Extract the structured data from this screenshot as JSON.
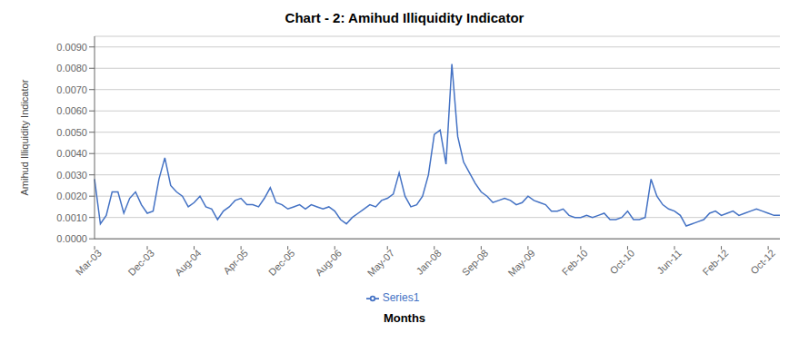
{
  "chart_data": {
    "type": "line",
    "title": "Chart - 2: Amihud Illiquidity Indicator",
    "y_label": "Amihud Illiquidity Indicator",
    "x_label": "Months",
    "categories": [
      "Mar-03",
      null,
      null,
      null,
      null,
      null,
      null,
      null,
      null,
      "Dec-03",
      null,
      null,
      null,
      null,
      null,
      null,
      null,
      "Aug-04",
      null,
      null,
      null,
      null,
      null,
      null,
      null,
      "Apr-05",
      null,
      null,
      null,
      null,
      null,
      null,
      null,
      "Dec-05",
      null,
      null,
      null,
      null,
      null,
      null,
      null,
      "Aug-06",
      null,
      null,
      null,
      null,
      null,
      null,
      null,
      null,
      "May-07",
      null,
      null,
      null,
      null,
      null,
      null,
      null,
      "Jan-08",
      null,
      null,
      null,
      null,
      null,
      null,
      null,
      "Sep-08",
      null,
      null,
      null,
      null,
      null,
      null,
      null,
      "May-09",
      null,
      null,
      null,
      null,
      null,
      null,
      null,
      null,
      "Feb-10",
      null,
      null,
      null,
      null,
      null,
      null,
      null,
      "Oct-10",
      null,
      null,
      null,
      null,
      null,
      null,
      null,
      "Jun-11",
      null,
      null,
      null,
      null,
      null,
      null,
      null,
      "Feb-12",
      null,
      null,
      null,
      null,
      null,
      null,
      null,
      "Oct-12",
      null,
      null
    ],
    "series": [
      {
        "name": "Series1",
        "color": "#4472C4",
        "values": [
          0.0028,
          0.0007,
          0.0011,
          0.0022,
          0.0022,
          0.0012,
          0.0019,
          0.0022,
          0.0016,
          0.0012,
          0.0013,
          0.0028,
          0.0038,
          0.0025,
          0.0022,
          0.002,
          0.0015,
          0.0017,
          0.002,
          0.0015,
          0.0014,
          0.0009,
          0.0013,
          0.0015,
          0.0018,
          0.0019,
          0.0016,
          0.0016,
          0.0015,
          0.0019,
          0.0024,
          0.0017,
          0.0016,
          0.0014,
          0.0015,
          0.0016,
          0.0014,
          0.0016,
          0.0015,
          0.0014,
          0.0015,
          0.0013,
          0.0009,
          0.0007,
          0.001,
          0.0012,
          0.0014,
          0.0016,
          0.0015,
          0.0018,
          0.0019,
          0.0021,
          0.0031,
          0.002,
          0.0015,
          0.0016,
          0.002,
          0.003,
          0.0049,
          0.0051,
          0.0035,
          0.0082,
          0.0048,
          0.0036,
          0.0031,
          0.0026,
          0.0022,
          0.002,
          0.0017,
          0.0018,
          0.0019,
          0.0018,
          0.0016,
          0.0017,
          0.002,
          0.0018,
          0.0017,
          0.0016,
          0.0013,
          0.0013,
          0.0014,
          0.0011,
          0.001,
          0.001,
          0.0011,
          0.001,
          0.0011,
          0.0012,
          0.0009,
          0.0009,
          0.001,
          0.0013,
          0.0009,
          0.0009,
          0.001,
          0.0028,
          0.002,
          0.0016,
          0.0014,
          0.0013,
          0.0011,
          0.0006,
          0.0007,
          0.0008,
          0.0009,
          0.0012,
          0.0013,
          0.0011,
          0.0012,
          0.0013,
          0.0011,
          0.0012,
          0.0013,
          0.0014,
          0.0013,
          0.0012,
          0.0011,
          0.0011
        ]
      }
    ],
    "ylim": [
      0.0,
      0.0095
    ],
    "yticks": [
      {
        "value": 0.0,
        "label": "0.0000"
      },
      {
        "value": 0.001,
        "label": "0.0010"
      },
      {
        "value": 0.002,
        "label": "0.0020"
      },
      {
        "value": 0.003,
        "label": "0.0030"
      },
      {
        "value": 0.004,
        "label": "0.0040"
      },
      {
        "value": 0.005,
        "label": "0.0050"
      },
      {
        "value": 0.006,
        "label": "0.0060"
      },
      {
        "value": 0.007,
        "label": "0.0070"
      },
      {
        "value": 0.008,
        "label": "0.0080"
      },
      {
        "value": 0.009,
        "label": "0.0090"
      }
    ],
    "grid": true,
    "legend": "bottom"
  }
}
